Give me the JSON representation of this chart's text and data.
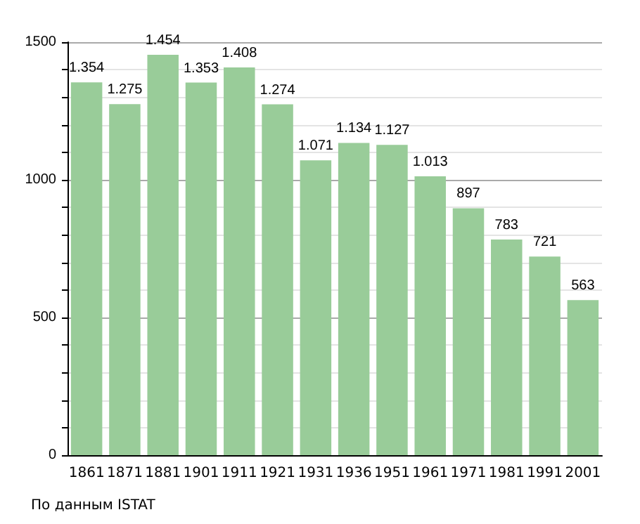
{
  "chart_data": {
    "type": "bar",
    "categories": [
      "1861",
      "1871",
      "1881",
      "1901",
      "1911",
      "1921",
      "1931",
      "1936",
      "1951",
      "1961",
      "1971",
      "1981",
      "1991",
      "2001"
    ],
    "values": [
      1354,
      1275,
      1454,
      1353,
      1408,
      1274,
      1071,
      1134,
      1127,
      1013,
      897,
      783,
      721,
      563
    ],
    "value_labels": [
      "1.354",
      "1.275",
      "1.454",
      "1.353",
      "1.408",
      "1.274",
      "1.071",
      "1.134",
      "1.127",
      "1.013",
      "897",
      "783",
      "721",
      "563"
    ],
    "color": "#99cc99",
    "ylim": [
      0,
      1500
    ],
    "yticks": [
      0,
      {
        "value": 100,
        "label": null
      },
      {
        "value": 200,
        "label": null
      },
      {
        "value": 300,
        "label": null
      },
      {
        "value": 400,
        "label": null
      },
      500,
      {
        "value": 600,
        "label": null
      },
      {
        "value": 700,
        "label": null
      },
      {
        "value": 800,
        "label": null
      },
      {
        "value": 900,
        "label": null
      },
      1000,
      {
        "value": 1100,
        "label": null
      },
      {
        "value": 1200,
        "label": null
      },
      {
        "value": 1300,
        "label": null
      },
      {
        "value": 1400,
        "label": null
      },
      1500
    ],
    "grid": true,
    "annotations": [
      "По данным ISTAT"
    ]
  }
}
